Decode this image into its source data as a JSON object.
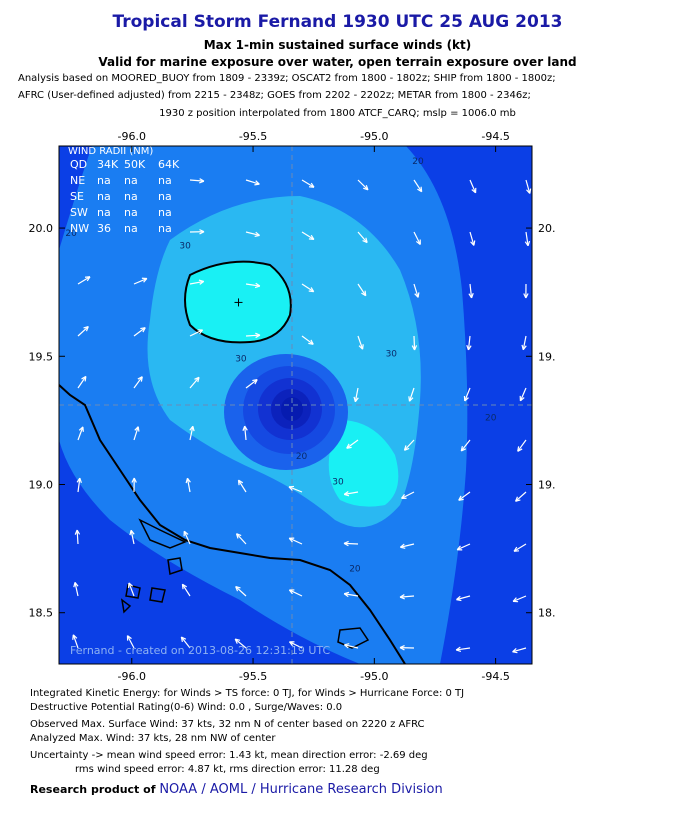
{
  "header": {
    "title": "Tropical Storm Fernand 1930 UTC 25 AUG 2013",
    "subtitle1": "Max 1-min sustained surface winds (kt)",
    "subtitle2": "Valid for marine exposure over water, open terrain exposure over land",
    "analysis1": "Analysis based on MOORED_BUOY from 1809 - 2339z; OSCAT2 from 1800 - 1802z; SHIP from 1800 - 1800z;",
    "analysis2": "AFRC (User-defined adjusted) from 2215 - 2348z; GOES from 2202 - 2202z; METAR from 1800 - 2346z;",
    "analysis3": "1930 z position interpolated from 1800 ATCF_CARQ; mslp = 1006.0 mb"
  },
  "chart_data": {
    "type": "contour",
    "x_ticks": [
      "-96.0",
      "-95.5",
      "-95.0",
      "-94.5"
    ],
    "y_ticks_left": [
      "20.0",
      "19.5",
      "19.0",
      "18.5"
    ],
    "y_ticks_right": [
      "20.",
      "19.",
      "19.",
      "18."
    ],
    "xlim": [
      -96.3,
      -94.35
    ],
    "ylim": [
      18.3,
      20.32
    ],
    "center": {
      "lon": -95.3,
      "lat": 19.3
    },
    "max_wind_marker": {
      "lon": -95.56,
      "lat": 19.71
    },
    "contour_labels": [
      {
        "text": "20",
        "lon": -94.82,
        "lat": 20.25
      },
      {
        "text": "30",
        "lon": -95.78,
        "lat": 19.92
      },
      {
        "text": "30",
        "lon": -95.55,
        "lat": 19.48
      },
      {
        "text": "30",
        "lon": -94.93,
        "lat": 19.5
      },
      {
        "text": "20",
        "lon": -94.52,
        "lat": 19.25
      },
      {
        "text": "30",
        "lon": -95.15,
        "lat": 19.0
      },
      {
        "text": "20",
        "lon": -95.3,
        "lat": 19.1
      },
      {
        "text": "20",
        "lon": -95.08,
        "lat": 18.66
      },
      {
        "text": "20",
        "lon": -96.25,
        "lat": 19.97
      }
    ],
    "wind_radii": {
      "title": "WIND RADII (NM)",
      "headers": [
        "QD",
        "34K",
        "50K",
        "64K"
      ],
      "rows": [
        [
          "NE",
          "na",
          "na",
          "na"
        ],
        [
          "SE",
          "na",
          "na",
          "na"
        ],
        [
          "SW",
          "na",
          "na",
          "na"
        ],
        [
          "NW",
          "36",
          "na",
          "na"
        ]
      ]
    },
    "credit": "Fernand - created on 2013-08-26 12:31:19 UTC",
    "colors": {
      "deep": "#0b3fe6",
      "level20": "#1a7df2",
      "level30": "#2ab8f2",
      "level35": "#19f0f4",
      "inner1": "#1a62ec",
      "inner2": "#1549e2",
      "inner3": "#1232d2",
      "inner4": "#0c22bc",
      "core": "#061bb0"
    }
  },
  "footer": {
    "ike": "Integrated Kinetic Energy: for Winds > TS force: 0 TJ, for Winds > Hurricane Force: 0 TJ",
    "dpr": "Destructive Potential Rating(0-6)  Wind: 0.0 , Surge/Waves: 0.0",
    "observed": "Observed Max. Surface Wind: 37 kts, 32 nm N of center based on 2220 z AFRC",
    "analyzed": "Analyzed Max. Wind: 37 kts, 28 nm  NW of center",
    "uncertainty1": "Uncertainty -> mean wind speed error: 1.43 kt, mean direction error:  -2.69 deg",
    "uncertainty2": "rms wind speed error: 4.87 kt, rms direction error: 11.28 deg",
    "research_prefix": "Research product of",
    "research_org": "NOAA  /  AOML  /  Hurricane Research Division"
  }
}
